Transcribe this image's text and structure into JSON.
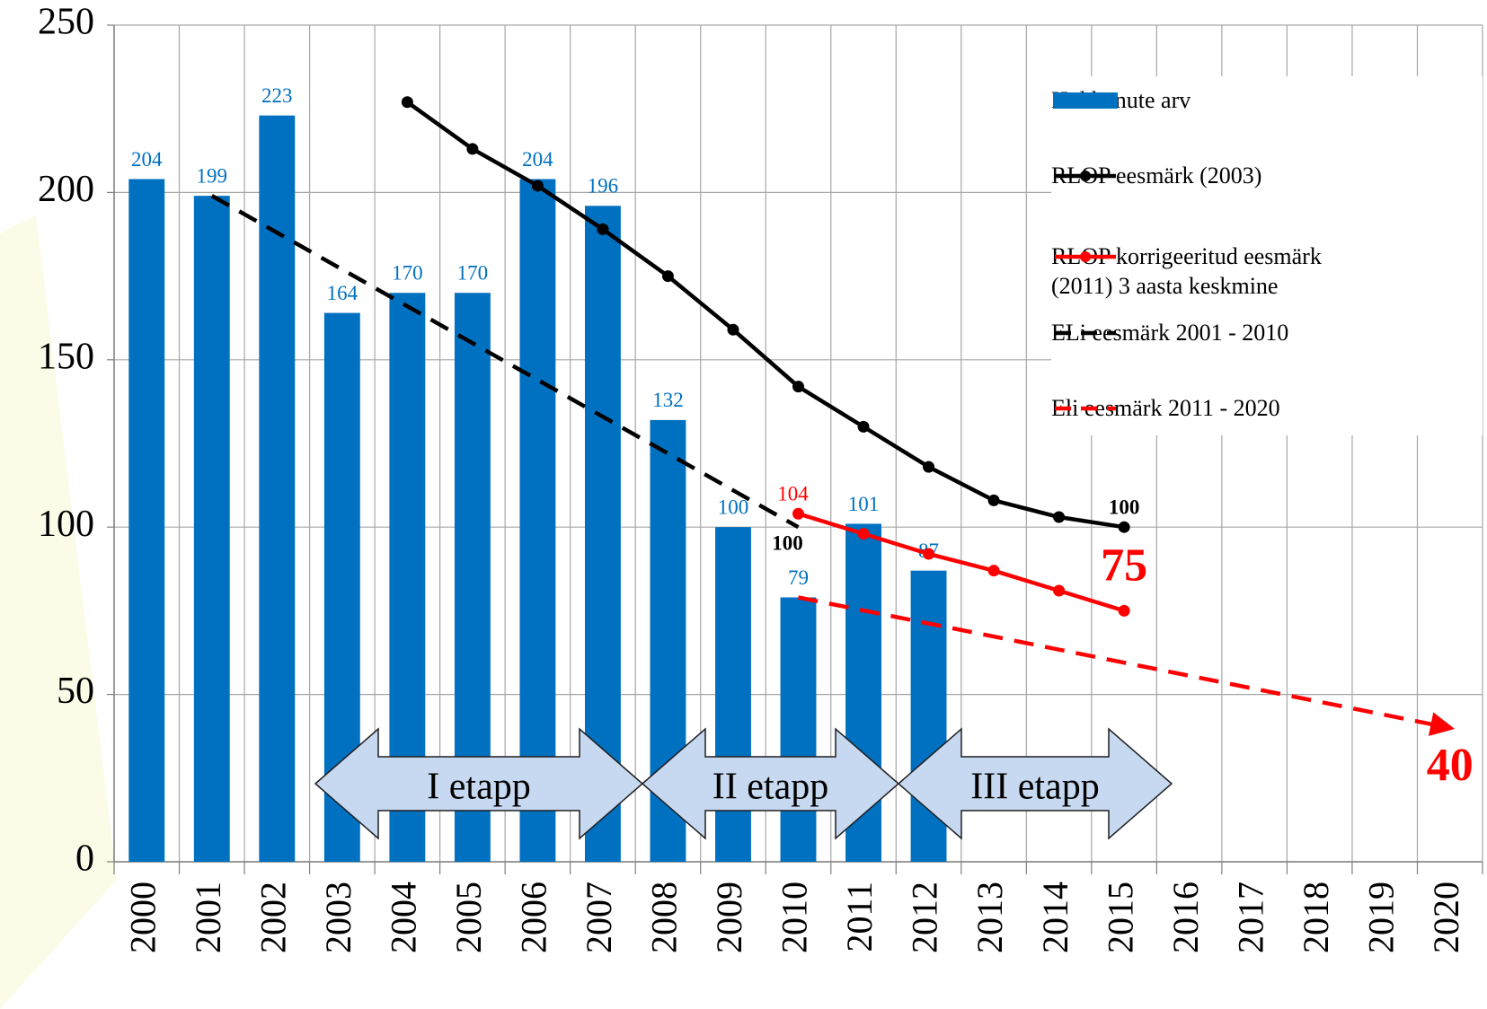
{
  "chart_data": {
    "type": "combo",
    "categories": [
      "2000",
      "2001",
      "2002",
      "2003",
      "2004",
      "2005",
      "2006",
      "2007",
      "2008",
      "2009",
      "2010",
      "2011",
      "2012",
      "2013",
      "2014",
      "2015",
      "2016",
      "2017",
      "2018",
      "2019",
      "2020"
    ],
    "ylim": [
      0,
      250
    ],
    "yticks": [
      0,
      50,
      100,
      150,
      200,
      250
    ],
    "grid": true,
    "legend": "top-right",
    "series": [
      {
        "name": "Hukkunute arv",
        "type": "bar",
        "color": "#0070c0",
        "values": [
          204,
          199,
          223,
          164,
          170,
          170,
          204,
          196,
          132,
          100,
          79,
          101,
          87,
          null,
          null,
          null,
          null,
          null,
          null,
          null,
          null
        ]
      },
      {
        "name": "RLOP eesmärk (2003)",
        "type": "line",
        "color": "#000000",
        "markers": true,
        "dashed": false,
        "values": [
          null,
          null,
          null,
          null,
          227,
          213,
          202,
          189,
          175,
          159,
          142,
          130,
          118,
          108,
          103,
          100,
          null,
          null,
          null,
          null,
          null
        ],
        "data_labels": [
          {
            "index": 15,
            "style": "bold",
            "position": "above"
          }
        ]
      },
      {
        "name": "RLOP korrigeeritud eesmärk\n(2011)   3 aasta keskmine",
        "type": "line",
        "color": "#ff0000",
        "markers": true,
        "dashed": false,
        "values": [
          null,
          null,
          null,
          null,
          null,
          null,
          null,
          null,
          null,
          null,
          104,
          98,
          92,
          87,
          81,
          75,
          null,
          null,
          null,
          null,
          null
        ],
        "data_labels": [
          {
            "index": 10,
            "style": "normal",
            "position": "above"
          },
          {
            "index": 15,
            "style": "large",
            "position": "above"
          }
        ]
      },
      {
        "name": "ELi eesmärk 2001 - 2010",
        "type": "line",
        "color": "#000000",
        "markers": false,
        "dashed": true,
        "values": [
          null,
          199,
          188,
          177,
          166,
          155,
          144,
          133,
          122,
          111,
          100,
          null,
          null,
          null,
          null,
          null,
          null,
          null,
          null,
          null,
          null
        ],
        "data_labels": [
          {
            "index": 10,
            "style": "bold",
            "position": "below"
          }
        ]
      },
      {
        "name": "Eli eesmärk 2011 - 2020",
        "type": "line",
        "color": "#ff0000",
        "markers": false,
        "dashed": true,
        "values": [
          null,
          null,
          null,
          null,
          null,
          null,
          null,
          null,
          null,
          null,
          79,
          75.1,
          71.2,
          67.3,
          63.4,
          59.5,
          55.6,
          51.7,
          47.8,
          43.9,
          40
        ],
        "data_labels": [
          {
            "index": 20,
            "style": "large",
            "position": "below"
          }
        ]
      }
    ],
    "annotations": [
      "I etapp",
      "II etapp",
      "III etapp"
    ]
  }
}
